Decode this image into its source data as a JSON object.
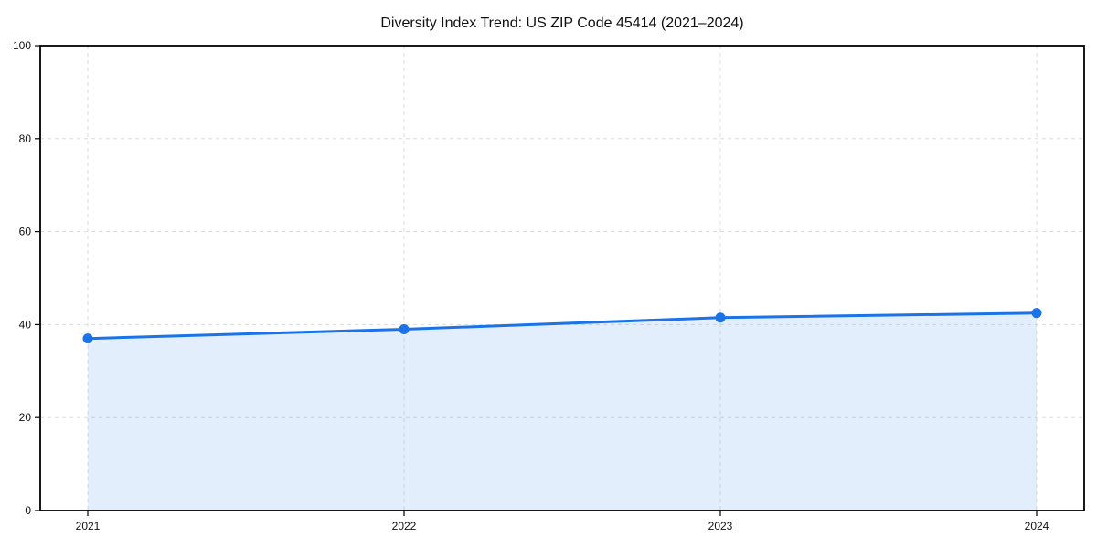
{
  "figure": {
    "background": "#ffffff",
    "text_color": "#111111",
    "grid_color": "#dcdcdc",
    "spine_color": "#000000"
  },
  "chart_data": {
    "type": "area",
    "title": "Diversity Index Trend: US ZIP Code 45414 (2021–2024)",
    "categories": [
      "2021",
      "2022",
      "2023",
      "2024"
    ],
    "series": [
      {
        "name": "Diversity Index",
        "values": [
          37,
          39,
          41.5,
          42.5
        ],
        "line_color": "#1a73e8",
        "fill_color": "rgba(26,115,232,0.12)",
        "marker": "circle"
      }
    ],
    "xlabel": "",
    "ylabel": "",
    "ylim": [
      0,
      100
    ],
    "yticks": [
      0,
      20,
      40,
      60,
      80,
      100
    ],
    "grid": "dashed",
    "legend_position": "none"
  }
}
